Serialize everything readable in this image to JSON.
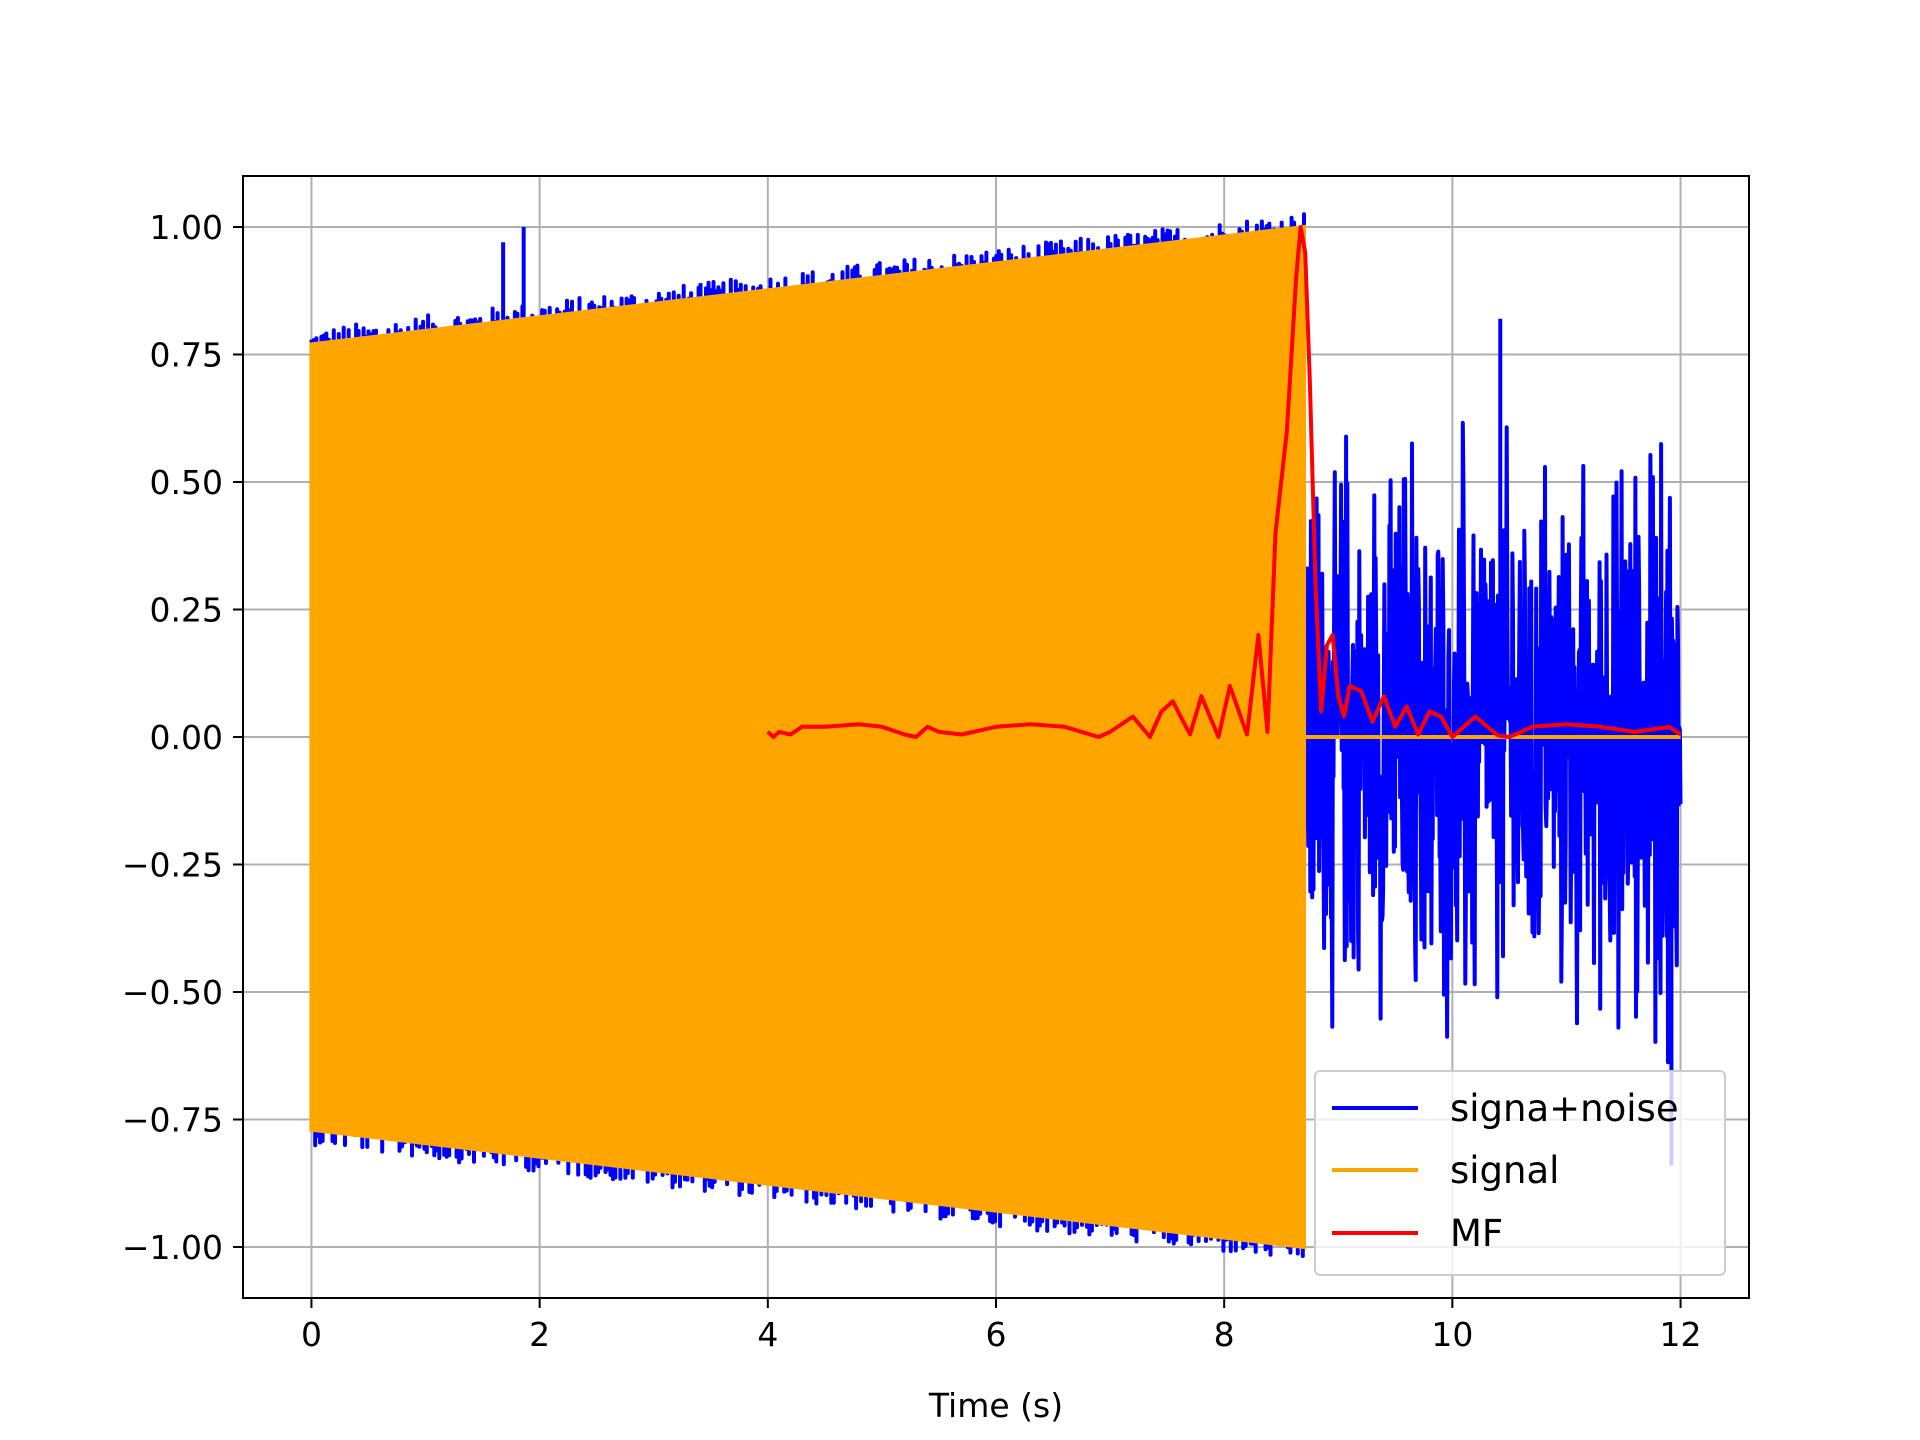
{
  "chart_data": {
    "type": "line",
    "title": "",
    "xlabel": "Time (s)",
    "ylabel": "",
    "xlim": [
      -0.6,
      12.6
    ],
    "ylim": [
      -1.1,
      1.1
    ],
    "xticks": [
      0,
      2,
      4,
      6,
      8,
      10,
      12
    ],
    "xtick_labels": [
      "0",
      "2",
      "4",
      "6",
      "8",
      "10",
      "12"
    ],
    "yticks": [
      1.0,
      0.75,
      0.5,
      0.25,
      0.0,
      -0.25,
      -0.5,
      -0.75,
      -1.0
    ],
    "ytick_labels": [
      "1.00",
      "0.75",
      "0.50",
      "0.25",
      "0.00",
      "−0.25",
      "−0.50",
      "−0.75",
      "−1.00"
    ],
    "grid": true,
    "legend_position": "lower-right",
    "series": [
      {
        "name": "signa+noise",
        "color": "#0000ff",
        "description_points": {
          "chirp_span": [
            0,
            8.7
          ],
          "amplitude_at_start": 0.77,
          "amplitude_at_end": 1.0,
          "noise_span": [
            8.7,
            12.0
          ],
          "noise_amplitude": 0.55,
          "spikes": [
            {
              "x": 1.68,
              "y": 0.97
            },
            {
              "x": 1.86,
              "y": 1.0
            },
            {
              "x": 3.41,
              "y": 0.89
            },
            {
              "x": 10.42,
              "y": 0.82
            },
            {
              "x": 11.92,
              "y": -0.84
            }
          ]
        }
      },
      {
        "name": "signal",
        "color": "#ffa500",
        "description_points": {
          "chirp_span": [
            0,
            8.7
          ],
          "amplitude_at_start": 0.77,
          "amplitude_at_end": 1.0,
          "zero_after": 8.7
        }
      },
      {
        "name": "MF",
        "color": "#ff0000",
        "x": [
          4.0,
          4.05,
          4.1,
          4.2,
          4.3,
          4.5,
          4.8,
          5.0,
          5.2,
          5.3,
          5.4,
          5.5,
          5.7,
          6.0,
          6.3,
          6.6,
          6.9,
          7.0,
          7.2,
          7.35,
          7.45,
          7.55,
          7.7,
          7.8,
          7.95,
          8.05,
          8.2,
          8.3,
          8.38,
          8.45,
          8.55,
          8.63,
          8.67,
          8.71,
          8.75,
          8.8,
          8.85,
          8.9,
          8.95,
          9.0,
          9.05,
          9.1,
          9.2,
          9.3,
          9.4,
          9.5,
          9.6,
          9.7,
          9.8,
          9.9,
          10.0,
          10.2,
          10.4,
          10.5,
          10.7,
          11.0,
          11.3,
          11.6,
          11.9,
          12.0
        ],
        "y": [
          0.01,
          0.0,
          0.01,
          0.005,
          0.02,
          0.02,
          0.025,
          0.02,
          0.005,
          0.0,
          0.02,
          0.01,
          0.005,
          0.02,
          0.025,
          0.02,
          0.0,
          0.01,
          0.04,
          0.0,
          0.05,
          0.07,
          0.005,
          0.08,
          0.0,
          0.1,
          0.005,
          0.2,
          0.01,
          0.4,
          0.6,
          0.9,
          1.0,
          0.95,
          0.7,
          0.3,
          0.05,
          0.18,
          0.2,
          0.08,
          0.04,
          0.1,
          0.09,
          0.03,
          0.08,
          0.02,
          0.06,
          0.005,
          0.05,
          0.04,
          0.0,
          0.04,
          0.003,
          0.0,
          0.02,
          0.025,
          0.02,
          0.01,
          0.02,
          0.005
        ]
      }
    ]
  }
}
